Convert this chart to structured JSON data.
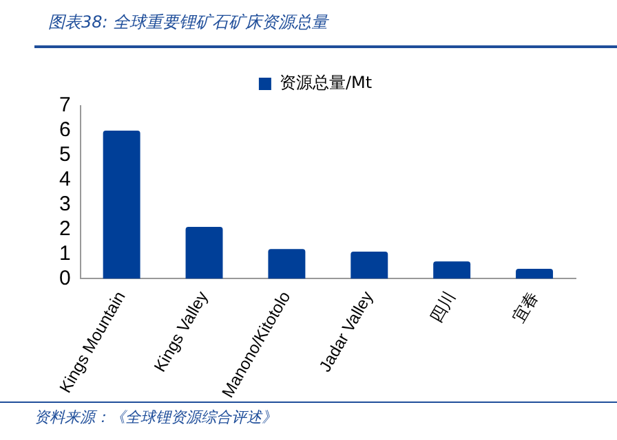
{
  "chart_data": {
    "type": "bar",
    "title": "图表38: 全球重要锂矿石矿床资源总量",
    "categories": [
      "Kings Mountain",
      "Kings Valley",
      "Manono/Kitotolo",
      "Jadar Valley",
      "四川",
      "宜春"
    ],
    "series": [
      {
        "name": "资源总量/Mt",
        "color": "#003f98",
        "values": [
          6.0,
          2.1,
          1.2,
          1.1,
          0.7,
          0.4
        ]
      }
    ],
    "ylim": [
      0,
      7
    ],
    "yticks": [
      0,
      1,
      2,
      3,
      4,
      5,
      6,
      7
    ],
    "grid": false,
    "legend": "top",
    "annotations": [
      "资料来源：《全球锂资源综合评述》"
    ]
  }
}
